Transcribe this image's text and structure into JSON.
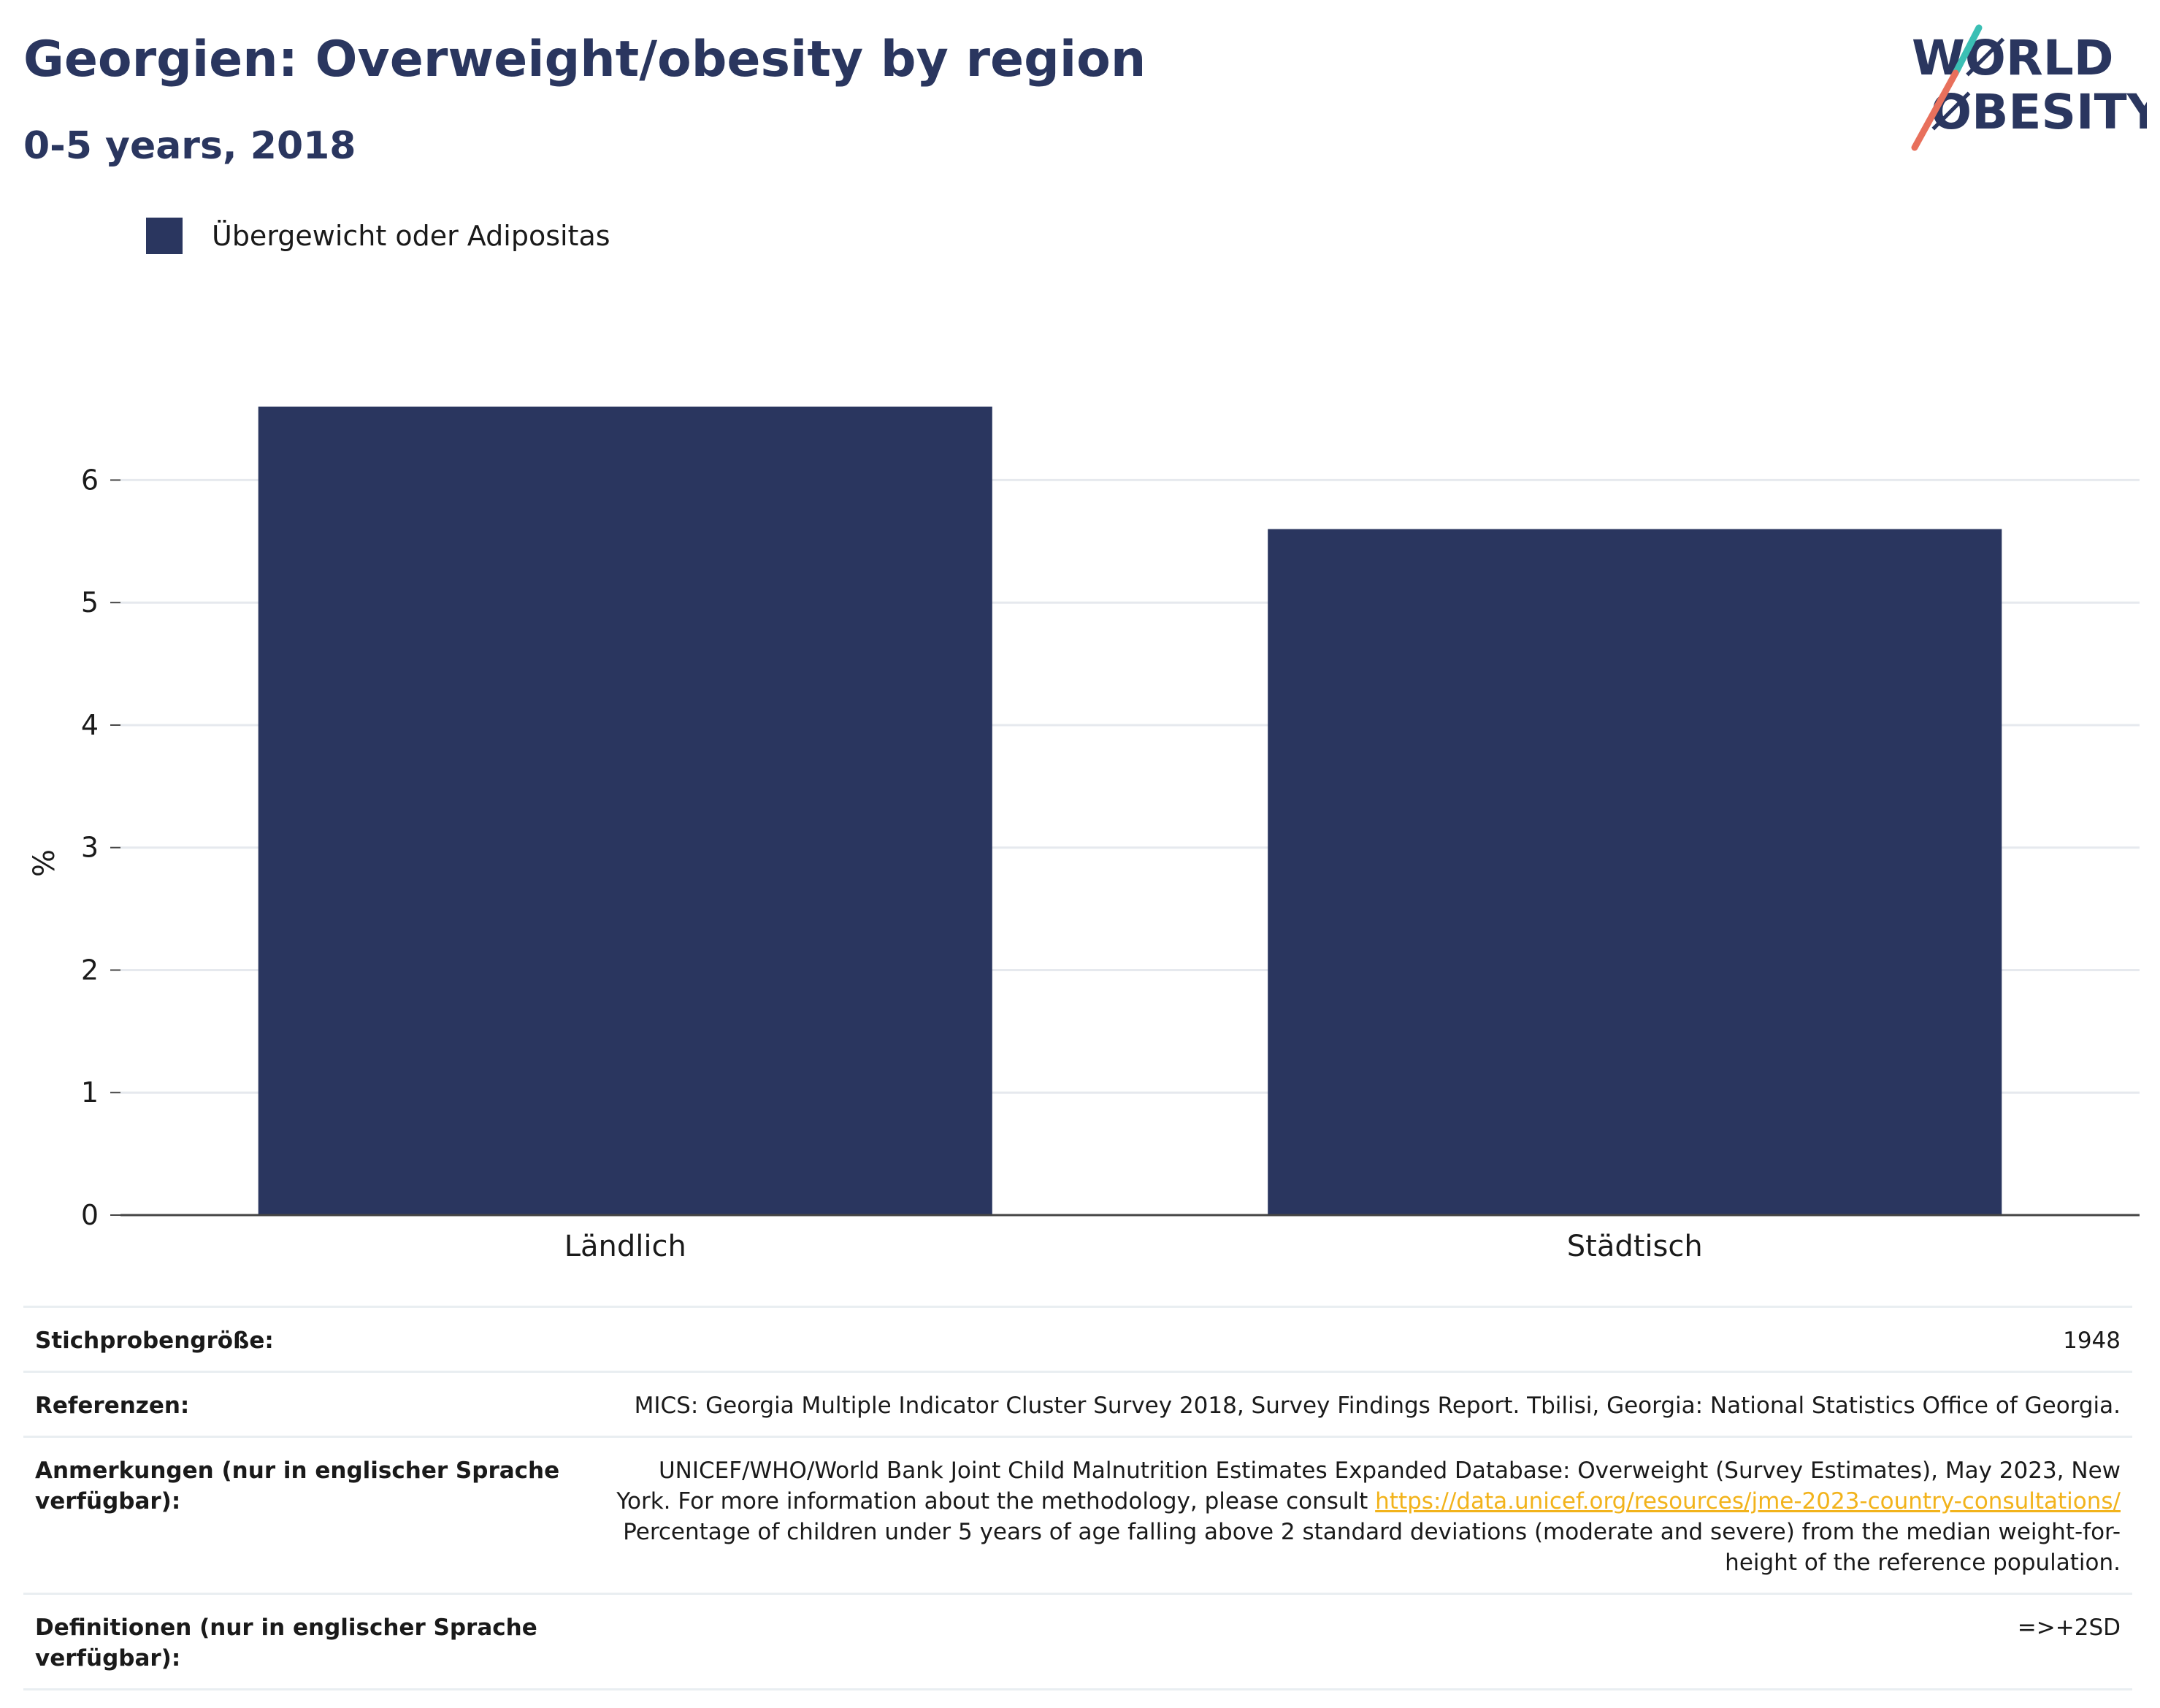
{
  "header": {
    "title": "Georgien: Overweight/obesity by region",
    "subtitle": "0-5 years, 2018"
  },
  "logo": {
    "line1": "WØRLD",
    "line2": "ØBESITY",
    "text_color": "#2a365f",
    "accent_teal": "#3bbfb4",
    "accent_coral": "#e8705c"
  },
  "legend": {
    "label": "Übergewicht oder Adipositas",
    "color": "#2a365f"
  },
  "chart_data": {
    "type": "bar",
    "categories": [
      "Ländlich",
      "Städtisch"
    ],
    "series": [
      {
        "name": "Übergewicht oder Adipositas",
        "values": [
          6.6,
          5.6
        ],
        "color": "#2a365f"
      }
    ],
    "title": "Georgien: Overweight/obesity by region",
    "subtitle": "0-5 years, 2018",
    "xlabel": "",
    "ylabel": "%",
    "ylim": [
      0,
      6.7
    ],
    "yticks": [
      0,
      1,
      2,
      3,
      4,
      5,
      6
    ],
    "grid": true,
    "legend_position": "top-left"
  },
  "info": {
    "sample_label": "Stichprobengröße:",
    "sample_value": "1948",
    "ref_label": "Referenzen:",
    "ref_value": "MICS: Georgia Multiple Indicator Cluster Survey 2018, Survey Findings Report. Tbilisi, Georgia: National Statistics Office of Georgia.",
    "notes_label": "Anmerkungen (nur in englischer Sprache verfügbar):",
    "notes_text1": "UNICEF/WHO/World Bank Joint Child Malnutrition Estimates Expanded Database: Overweight (Survey Estimates), May 2023, New York. For more information about the methodology, please consult ",
    "notes_link": "https://data.unicef.org/resources/jme-2023-country-consultations/",
    "notes_text2": " Percentage of children under 5 years of age falling above 2 standard deviations (moderate and severe) from the median weight-for-height of the reference population.",
    "def_label": "Definitionen (nur in englischer Sprache verfügbar):",
    "def_value": "=>+2SD"
  }
}
